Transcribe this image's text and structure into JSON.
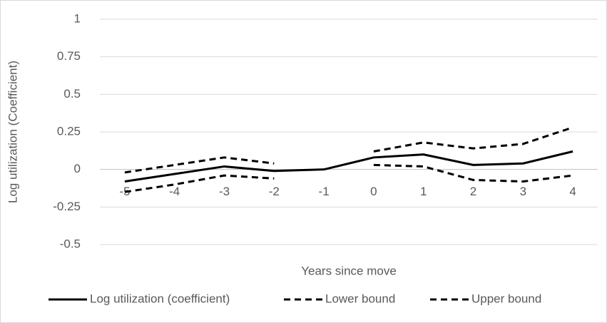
{
  "chart_data": {
    "type": "line",
    "x_label": "Years since move",
    "y_label": "Log utilization (Coefficient)",
    "categories": [
      "-5",
      "-4",
      "-3",
      "-2",
      "-1",
      "0",
      "1",
      "2",
      "3",
      "4"
    ],
    "series": [
      {
        "name": "Log utilization (coefficient)",
        "color": "#000000",
        "style": "solid",
        "values": [
          -0.08,
          -0.03,
          0.02,
          -0.01,
          0,
          0.08,
          0.1,
          0.03,
          0.04,
          0.12
        ]
      },
      {
        "name": "Lower bound",
        "color": "#000000",
        "style": "dashed",
        "values": [
          -0.15,
          -0.1,
          -0.04,
          -0.06,
          null,
          0.03,
          0.02,
          -0.07,
          -0.08,
          -0.04
        ]
      },
      {
        "name": "Upper bound",
        "color": "#000000",
        "style": "dashed",
        "values": [
          -0.02,
          0.03,
          0.08,
          0.04,
          null,
          0.12,
          0.18,
          0.14,
          0.17,
          0.28
        ]
      }
    ],
    "ylim": [
      -0.5,
      1
    ],
    "yticks": [
      -0.5,
      -0.25,
      0,
      0.25,
      0.5,
      0.75,
      1
    ],
    "grid": true,
    "legend": "bottom"
  }
}
